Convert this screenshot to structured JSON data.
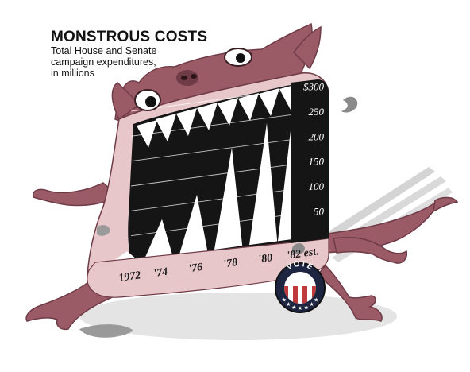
{
  "chart_data": {
    "type": "area",
    "title": "MONSTROUS COSTS",
    "subtitle_lines": [
      "Total House and Senate",
      "campaign expenditures,",
      "in millions"
    ],
    "categories": [
      "1972",
      "'74",
      "'76",
      "'78",
      "'80",
      "'82 est."
    ],
    "values": [
      20,
      75,
      115,
      200,
      240,
      300
    ],
    "ylim": [
      0,
      300
    ],
    "yticks": [
      {
        "value": 50,
        "label": "50"
      },
      {
        "value": 100,
        "label": "100"
      },
      {
        "value": 150,
        "label": "150"
      },
      {
        "value": 200,
        "label": "200"
      },
      {
        "value": 250,
        "label": "250"
      },
      {
        "value": 300,
        "label": "$300"
      }
    ],
    "grid": true
  },
  "badge": {
    "label": "VOTE",
    "colors": {
      "navy": "#1d2540",
      "red": "#c0393b",
      "white": "#ffffff"
    }
  },
  "colors": {
    "monster": "#9a5a66",
    "monster_dark": "#6f3b47",
    "lip": "#e8c7cb",
    "mouth": "#151515",
    "tooth": "#ffffff",
    "shadow": "#cfcfcf"
  }
}
